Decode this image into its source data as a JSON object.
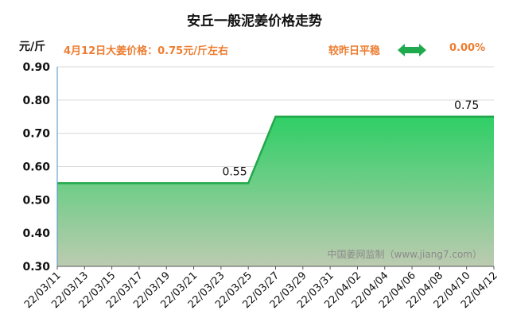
{
  "header": {
    "title": "安丘一般泥姜价格走势",
    "y_unit": "元/斤",
    "price_note": "4月12日大姜价格：0.75元/斤左右",
    "compare_label": "较昨日平稳",
    "compare_value": "0.00%",
    "compare_icon": "double-arrow-icon"
  },
  "watermark": "中国姜网监制（www.jiang7.com）",
  "colors": {
    "line": "#22a84a",
    "fill_top": "#2fcf66",
    "fill_bottom": "#bccbb0",
    "accent_text": "#ed7d31",
    "arrow": "#1faa4e"
  },
  "chart_data": {
    "type": "area",
    "title": "安丘一般泥姜价格走势",
    "ylabel": "元/斤",
    "ylim": [
      0.3,
      0.9
    ],
    "yticks": [
      "0.30",
      "0.40",
      "0.50",
      "0.60",
      "0.70",
      "0.80",
      "0.90"
    ],
    "x_tick_labels": [
      "22/03/11",
      "22/03/13",
      "22/03/15",
      "22/03/17",
      "22/03/19",
      "22/03/21",
      "22/03/23",
      "22/03/25",
      "22/03/27",
      "22/03/29",
      "22/03/31",
      "22/04/02",
      "22/04/04",
      "22/04/06",
      "22/04/08",
      "22/04/10",
      "22/04/12"
    ],
    "x": [
      "2022-03-11",
      "2022-03-25",
      "2022-03-27",
      "2022-04-12"
    ],
    "y": [
      0.55,
      0.55,
      0.75,
      0.75
    ],
    "data_labels": [
      {
        "x": "2022-03-24",
        "text": "0.55"
      },
      {
        "x": "2022-04-10",
        "text": "0.75"
      }
    ],
    "grid": "horizontal",
    "legend": "none"
  }
}
